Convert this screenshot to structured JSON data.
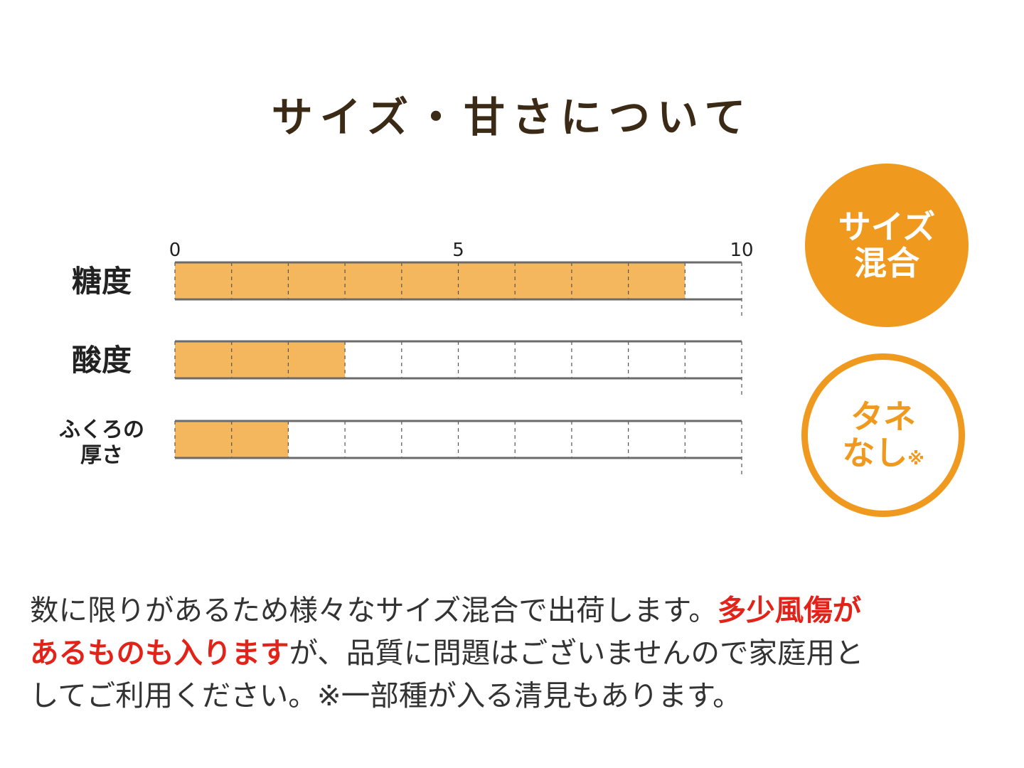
{
  "title": "サイズ・甘さについて",
  "chart_data": {
    "type": "bar",
    "orientation": "horizontal",
    "xlim": [
      0,
      10
    ],
    "ticks": [
      "0",
      "5",
      "10"
    ],
    "grid": true,
    "categories": [
      "糖度",
      "酸度",
      "ふくろの厚さ"
    ],
    "category_lines": [
      [
        "糖度"
      ],
      [
        "酸度"
      ],
      [
        "ふくろの",
        "厚さ"
      ]
    ],
    "values": [
      9,
      3,
      2
    ],
    "colors": {
      "bar": "#f4b75e",
      "frame": "#6b6b6b",
      "grid": "#555555"
    }
  },
  "badges": {
    "size_mixed": {
      "line1": "サイズ",
      "line2": "混合"
    },
    "seedless": {
      "line1": "タネ",
      "line2": "なし",
      "mark": "※"
    }
  },
  "note": {
    "line1_a": "数に限りがあるため様々なサイズ混合で出荷します。",
    "line1_b": "多少風傷が",
    "line2_a": "あるものも入ります",
    "line2_b": "が、品質に問題はございませんので家庭用と",
    "line3": "してご利用ください。※一部種が入る清見もあります。"
  },
  "colors": {
    "title": "#3b2a15",
    "accent": "#ef9a1e",
    "red": "#e2231a",
    "text": "#333333"
  }
}
